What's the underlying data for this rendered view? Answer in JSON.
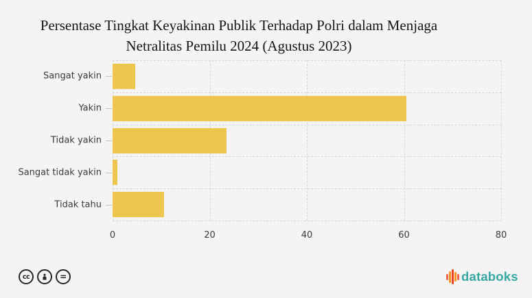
{
  "page": {
    "background_color": "#f4f4f4"
  },
  "header": {
    "title": "Persentase Tingkat Keyakinan Publik Terhadap Polri dalam Menjaga Netralitas Pemilu 2024 (Agustus 2023)",
    "title_lines": [
      "Persentase Tingkat Keyakinan Publik Terhadap Polri dalam Menjaga",
      "Netralitas Pemilu 2024 (Agustus 2023)"
    ]
  },
  "chart_data": {
    "type": "bar",
    "orientation": "horizontal",
    "title": "Persentase Tingkat Keyakinan Publik Terhadap Polri dalam Menjaga Netralitas Pemilu 2024 (Agustus 2023)",
    "categories": [
      "Sangat yakin",
      "Yakin",
      "Tidak yakin",
      "Sangat tidak yakin",
      "Tidak tahu"
    ],
    "values": [
      4.6,
      60.5,
      23.4,
      1.0,
      10.6
    ],
    "unit": "percent",
    "xlim": [
      0,
      80
    ],
    "x_ticks": [
      0,
      20,
      40,
      60,
      80
    ],
    "xlabel": "",
    "ylabel": "",
    "legend": "none",
    "grid_style": "dashed",
    "bar_color": "#ecc64f",
    "gridline_color": "#d6d6d6",
    "tick_label_color": "#3a3a3a"
  },
  "footer": {
    "license_badges": [
      {
        "icon": "cc-icon",
        "label": "cc"
      },
      {
        "icon": "attribution-icon",
        "label": "by"
      },
      {
        "icon": "no-derivatives-icon",
        "label": "="
      }
    ],
    "brand": {
      "name": "databoks",
      "text_color": "#38a8a1",
      "icon_bar_colors": [
        "#ee6352",
        "#f7941d",
        "#ee4323",
        "#f7941d",
        "#ee6352"
      ],
      "icon_bar_heights": [
        9,
        17,
        22,
        14,
        9
      ]
    }
  }
}
